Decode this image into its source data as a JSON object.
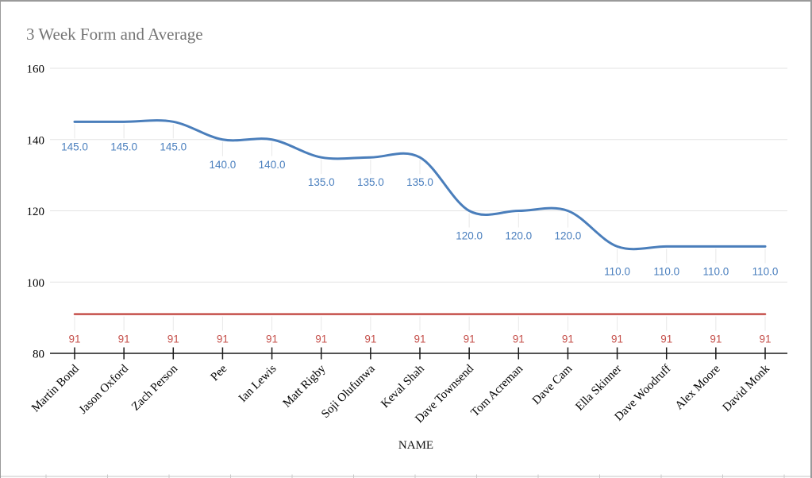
{
  "chart_data": {
    "type": "line",
    "title": "3 Week Form and Average",
    "xlabel": "NAME",
    "ylabel": "",
    "ylim": [
      80,
      160
    ],
    "yticks": [
      160,
      140,
      120,
      100,
      80
    ],
    "grid": "horizontal",
    "legend": "none",
    "smooth": true,
    "categories": [
      "Martin Bond",
      "Jason Oxford",
      "Zach Person",
      "Pee",
      "Ian Lewis",
      "Matt Rigby",
      "Soji Olufunwa",
      "Keval Shah",
      "Dave Townsend",
      "Tom Acreman",
      "Dave Cam",
      "Ella Skinner",
      "Dave Woodruff",
      "Alex Moore",
      "David Monk"
    ],
    "series": [
      {
        "name": "form",
        "color": "#4a7ebb",
        "label_color": "#4a7fbe",
        "line_width": 3,
        "values": [
          145,
          145,
          145,
          140,
          140,
          135,
          135,
          135,
          120,
          120,
          120,
          110,
          110,
          110,
          110
        ],
        "point_labels": [
          "145.0",
          "145.0",
          "145.0",
          "140.0",
          "140.0",
          "135.0",
          "135.0",
          "135.0",
          "120.0",
          "120.0",
          "120.0",
          "110.0",
          "110.0",
          "110.0",
          "110.0"
        ]
      },
      {
        "name": "average",
        "color": "#c5504b",
        "label_color": "#c5504b",
        "line_width": 2.5,
        "values": [
          91,
          91,
          91,
          91,
          91,
          91,
          91,
          91,
          91,
          91,
          91,
          91,
          91,
          91,
          91
        ],
        "point_labels": [
          "91",
          "91",
          "91",
          "91",
          "91",
          "91",
          "91",
          "91",
          "91",
          "91",
          "91",
          "91",
          "91",
          "91",
          "91"
        ]
      }
    ]
  },
  "colors": {
    "gridline": "#e3e3e3",
    "leader_line": "#e8e8e8",
    "axis": "#1a1a1a",
    "tick_label": "#000000",
    "title": "#757575",
    "sheet_line": "#d9d9d9",
    "sheet_divider": "#c9c9c9"
  }
}
